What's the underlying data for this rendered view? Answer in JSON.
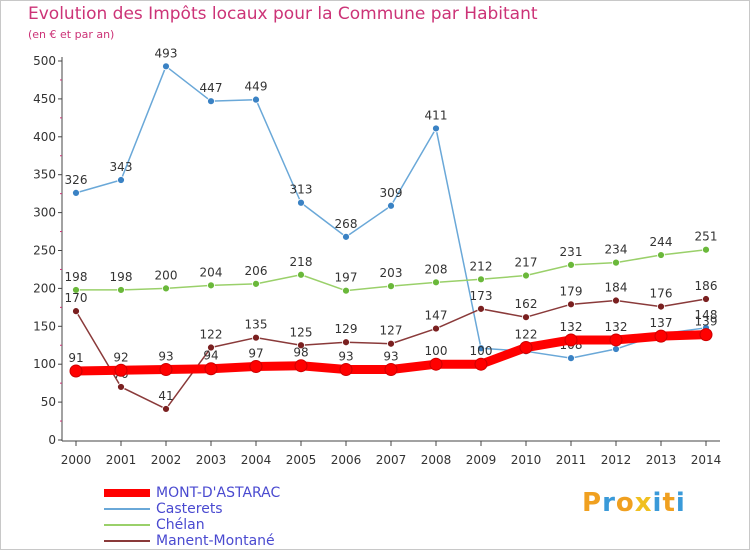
{
  "header": {
    "title": "Evolution des Impôts locaux pour la Commune par Habitant",
    "subtitle": "(en € et par an)"
  },
  "logo": {
    "text": "Proxiti",
    "letters": [
      "P",
      "r",
      "o",
      "x",
      "i",
      "t",
      "i"
    ],
    "colors": [
      "#f0a020",
      "#3a9ad9",
      "#f0a020",
      "#f0c020",
      "#3a9ad9",
      "#f0a020",
      "#3a9ad9"
    ]
  },
  "chart_data": {
    "type": "line",
    "title": "Evolution des Impôts locaux pour la Commune par Habitant",
    "subtitle": "(en € et par an)",
    "x": [
      "2000",
      "2001",
      "2002",
      "2003",
      "2004",
      "2005",
      "2006",
      "2007",
      "2008",
      "2009",
      "2010",
      "2011",
      "2012",
      "2013",
      "2014"
    ],
    "ylim": [
      0,
      500
    ],
    "yticks": [
      "0",
      "50",
      "100",
      "150",
      "200",
      "250",
      "300",
      "350",
      "400",
      "450",
      "500"
    ],
    "grid": false,
    "legend_position": "bottom-left",
    "series": [
      {
        "name": "Casterets",
        "color": "#6aa8d8",
        "marker": "#3a82c4",
        "values": [
          326,
          343,
          493,
          447,
          449,
          313,
          268,
          309,
          411,
          121,
          117,
          108,
          120,
          140,
          148
        ],
        "labels": [
          "326",
          "343",
          "493",
          "447",
          "449",
          "313",
          "268",
          "309",
          "411",
          "",
          "",
          "108",
          "",
          "",
          "148"
        ]
      },
      {
        "name": "Chélan",
        "color": "#9ad06a",
        "marker": "#6ab83a",
        "values": [
          198,
          198,
          200,
          204,
          206,
          218,
          197,
          203,
          208,
          212,
          217,
          231,
          234,
          244,
          251
        ],
        "labels": [
          "198",
          "198",
          "200",
          "204",
          "206",
          "218",
          "197",
          "203",
          "208",
          "212",
          "217",
          "231",
          "234",
          "244",
          "251"
        ]
      },
      {
        "name": "Manent-Montané",
        "color": "#8a3a3a",
        "marker": "#7a2020",
        "values": [
          170,
          70,
          41,
          122,
          135,
          125,
          129,
          127,
          147,
          173,
          162,
          179,
          184,
          176,
          186
        ],
        "labels": [
          "170",
          "70",
          "41",
          "122",
          "135",
          "125",
          "129",
          "127",
          "147",
          "173",
          "162",
          "179",
          "184",
          "176",
          "186"
        ]
      },
      {
        "name": "MONT-D'ASTARAC",
        "color": "#ff0000",
        "marker": "#ff0000",
        "values": [
          91,
          92,
          93,
          94,
          97,
          98,
          93,
          93,
          100,
          100,
          122,
          132,
          132,
          137,
          139
        ],
        "labels": [
          "91",
          "92",
          "93",
          "94",
          "97",
          "98",
          "93",
          "93",
          "100",
          "100",
          "122",
          "132",
          "132",
          "137",
          "139"
        ]
      }
    ]
  },
  "legend": [
    {
      "label": "MONT-D'ASTARAC",
      "color": "#ff0000"
    },
    {
      "label": "Casterets",
      "color": "#6aa8d8"
    },
    {
      "label": "Chélan",
      "color": "#9ad06a"
    },
    {
      "label": "Manent-Montané",
      "color": "#8a3a3a"
    }
  ]
}
